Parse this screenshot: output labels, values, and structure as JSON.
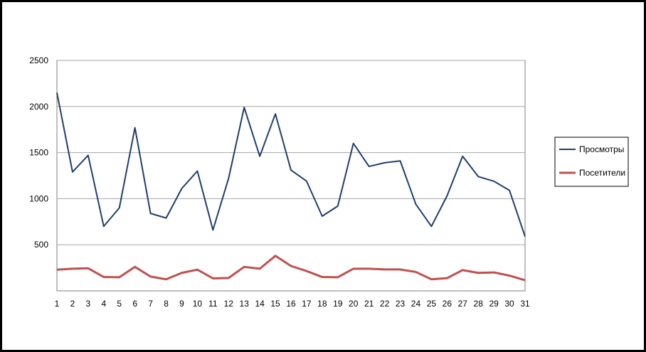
{
  "chart_data": {
    "type": "line",
    "title": "",
    "xlabel": "",
    "ylabel": "",
    "x": [
      1,
      2,
      3,
      4,
      5,
      6,
      7,
      8,
      9,
      10,
      11,
      12,
      13,
      14,
      15,
      16,
      17,
      18,
      19,
      20,
      21,
      22,
      23,
      24,
      25,
      26,
      27,
      28,
      29,
      30,
      31
    ],
    "yticks": [
      500,
      1000,
      1500,
      2000,
      2500
    ],
    "ylim": [
      0,
      2500
    ],
    "xlim": [
      1,
      31
    ],
    "grid": true,
    "legend_position": "right",
    "series": [
      {
        "name": "Просмотры",
        "color": "#1f3f6e",
        "values": [
          2150,
          1290,
          1470,
          700,
          900,
          1770,
          840,
          790,
          1110,
          1300,
          660,
          1220,
          1990,
          1460,
          1920,
          1310,
          1190,
          810,
          920,
          1600,
          1350,
          1390,
          1410,
          940,
          700,
          1030,
          1460,
          1240,
          1190,
          1090,
          590
        ]
      },
      {
        "name": "Посетители",
        "color": "#c0504d",
        "values": [
          230,
          240,
          245,
          150,
          148,
          260,
          155,
          125,
          195,
          230,
          135,
          140,
          260,
          240,
          380,
          270,
          215,
          150,
          148,
          240,
          240,
          232,
          232,
          205,
          125,
          138,
          225,
          195,
          200,
          165,
          115
        ]
      }
    ]
  }
}
